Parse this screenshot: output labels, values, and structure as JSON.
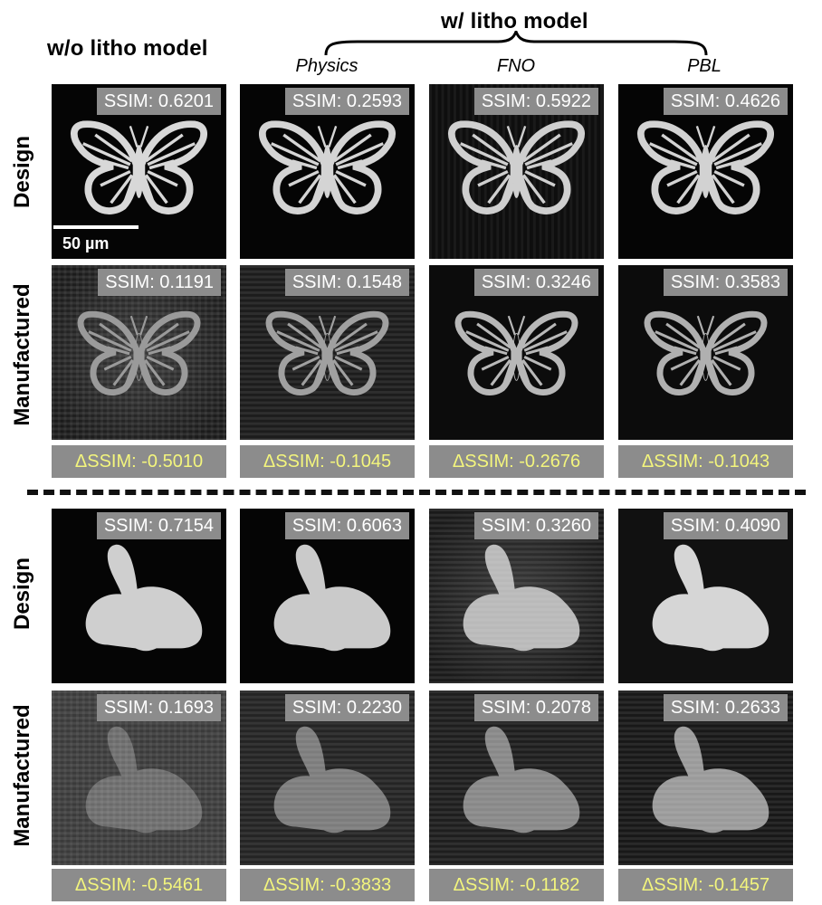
{
  "header": {
    "without_model": "w/o litho model",
    "with_model": "w/ litho model",
    "columns": [
      "Physics",
      "FNO",
      "PBL"
    ]
  },
  "row_labels": {
    "design": "Design",
    "manufactured": "Manufactured"
  },
  "scale_bar": "50 µm",
  "butterfly": {
    "design_ssim": [
      "SSIM: 0.6201",
      "SSIM: 0.2593",
      "SSIM: 0.5922",
      "SSIM: 0.4626"
    ],
    "manufactured_ssim": [
      "SSIM: 0.1191",
      "SSIM: 0.1548",
      "SSIM: 0.3246",
      "SSIM: 0.3583"
    ],
    "delta_ssim": [
      "ΔSSIM: -0.5010",
      "ΔSSIM: -0.1045",
      "ΔSSIM: -0.2676",
      "ΔSSIM: -0.1043"
    ]
  },
  "bunny": {
    "design_ssim": [
      "SSIM: 0.7154",
      "SSIM: 0.6063",
      "SSIM: 0.3260",
      "SSIM: 0.4090"
    ],
    "manufactured_ssim": [
      "SSIM: 0.1693",
      "SSIM: 0.2230",
      "SSIM: 0.2078",
      "SSIM: 0.2633"
    ],
    "delta_ssim": [
      "ΔSSIM: -0.5461",
      "ΔSSIM: -0.3833",
      "ΔSSIM: -0.1182",
      "ΔSSIM: -0.1457"
    ]
  },
  "colors": {
    "label_bg": "#8c8c8c",
    "delta_text": "#f3f57d",
    "ssim_text": "#ffffff"
  }
}
